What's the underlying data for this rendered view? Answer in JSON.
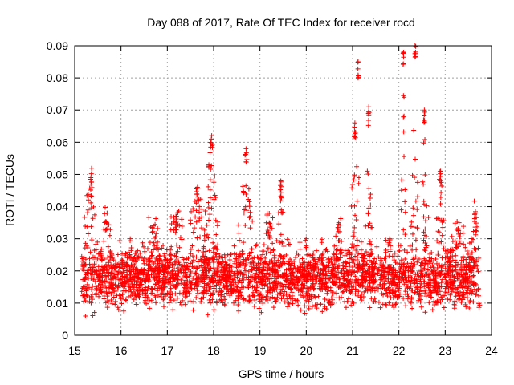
{
  "chart_data": {
    "type": "scatter",
    "title": "Day 088 of 2017, Rate Of TEC Index for receiver rocd",
    "xlabel": "GPS time / hours",
    "ylabel": "ROTI / TECUs",
    "xlim": [
      15,
      24
    ],
    "ylim": [
      0,
      0.09
    ],
    "x_ticks": [
      15,
      16,
      17,
      18,
      19,
      20,
      21,
      22,
      23,
      24
    ],
    "x_tick_labels": [
      "15",
      "16",
      "17",
      "18",
      "19",
      "20",
      "21",
      "22",
      "23",
      "24"
    ],
    "y_ticks": [
      0,
      0.01,
      0.02,
      0.03,
      0.04,
      0.05,
      0.06,
      0.07,
      0.08,
      0.09
    ],
    "y_tick_labels": [
      "0",
      "0.01",
      "0.02",
      "0.03",
      "0.04",
      "0.05",
      "0.06",
      "0.07",
      "0.08",
      "0.09"
    ],
    "grid": true,
    "marker": "plus",
    "color": "#ff0000",
    "x_data_range": [
      15.15,
      23.75
    ],
    "baseline_min": 0.005,
    "baseline_max": 0.03,
    "events": [
      {
        "x": 15.35,
        "peak": 0.049,
        "width": 0.1
      },
      {
        "x": 15.7,
        "peak": 0.038,
        "width": 0.08
      },
      {
        "x": 16.2,
        "peak": 0.03,
        "width": 0.1
      },
      {
        "x": 16.7,
        "peak": 0.034,
        "width": 0.12
      },
      {
        "x": 17.2,
        "peak": 0.037,
        "width": 0.12
      },
      {
        "x": 17.65,
        "peak": 0.046,
        "width": 0.12
      },
      {
        "x": 17.95,
        "peak": 0.061,
        "width": 0.1
      },
      {
        "x": 18.7,
        "peak": 0.058,
        "width": 0.1
      },
      {
        "x": 19.45,
        "peak": 0.048,
        "width": 0.04
      },
      {
        "x": 19.2,
        "peak": 0.035,
        "width": 0.08
      },
      {
        "x": 20.0,
        "peak": 0.03,
        "width": 0.1
      },
      {
        "x": 20.7,
        "peak": 0.035,
        "width": 0.1
      },
      {
        "x": 21.05,
        "peak": 0.066,
        "width": 0.07
      },
      {
        "x": 21.12,
        "peak": 0.085,
        "width": 0.02
      },
      {
        "x": 21.35,
        "peak": 0.071,
        "width": 0.04
      },
      {
        "x": 21.8,
        "peak": 0.03,
        "width": 0.1
      },
      {
        "x": 22.1,
        "peak": 0.088,
        "width": 0.04
      },
      {
        "x": 22.35,
        "peak": 0.09,
        "width": 0.05
      },
      {
        "x": 22.55,
        "peak": 0.07,
        "width": 0.06
      },
      {
        "x": 22.9,
        "peak": 0.051,
        "width": 0.06
      },
      {
        "x": 23.3,
        "peak": 0.035,
        "width": 0.1
      },
      {
        "x": 23.65,
        "peak": 0.038,
        "width": 0.08
      }
    ],
    "n_points": 3200
  }
}
